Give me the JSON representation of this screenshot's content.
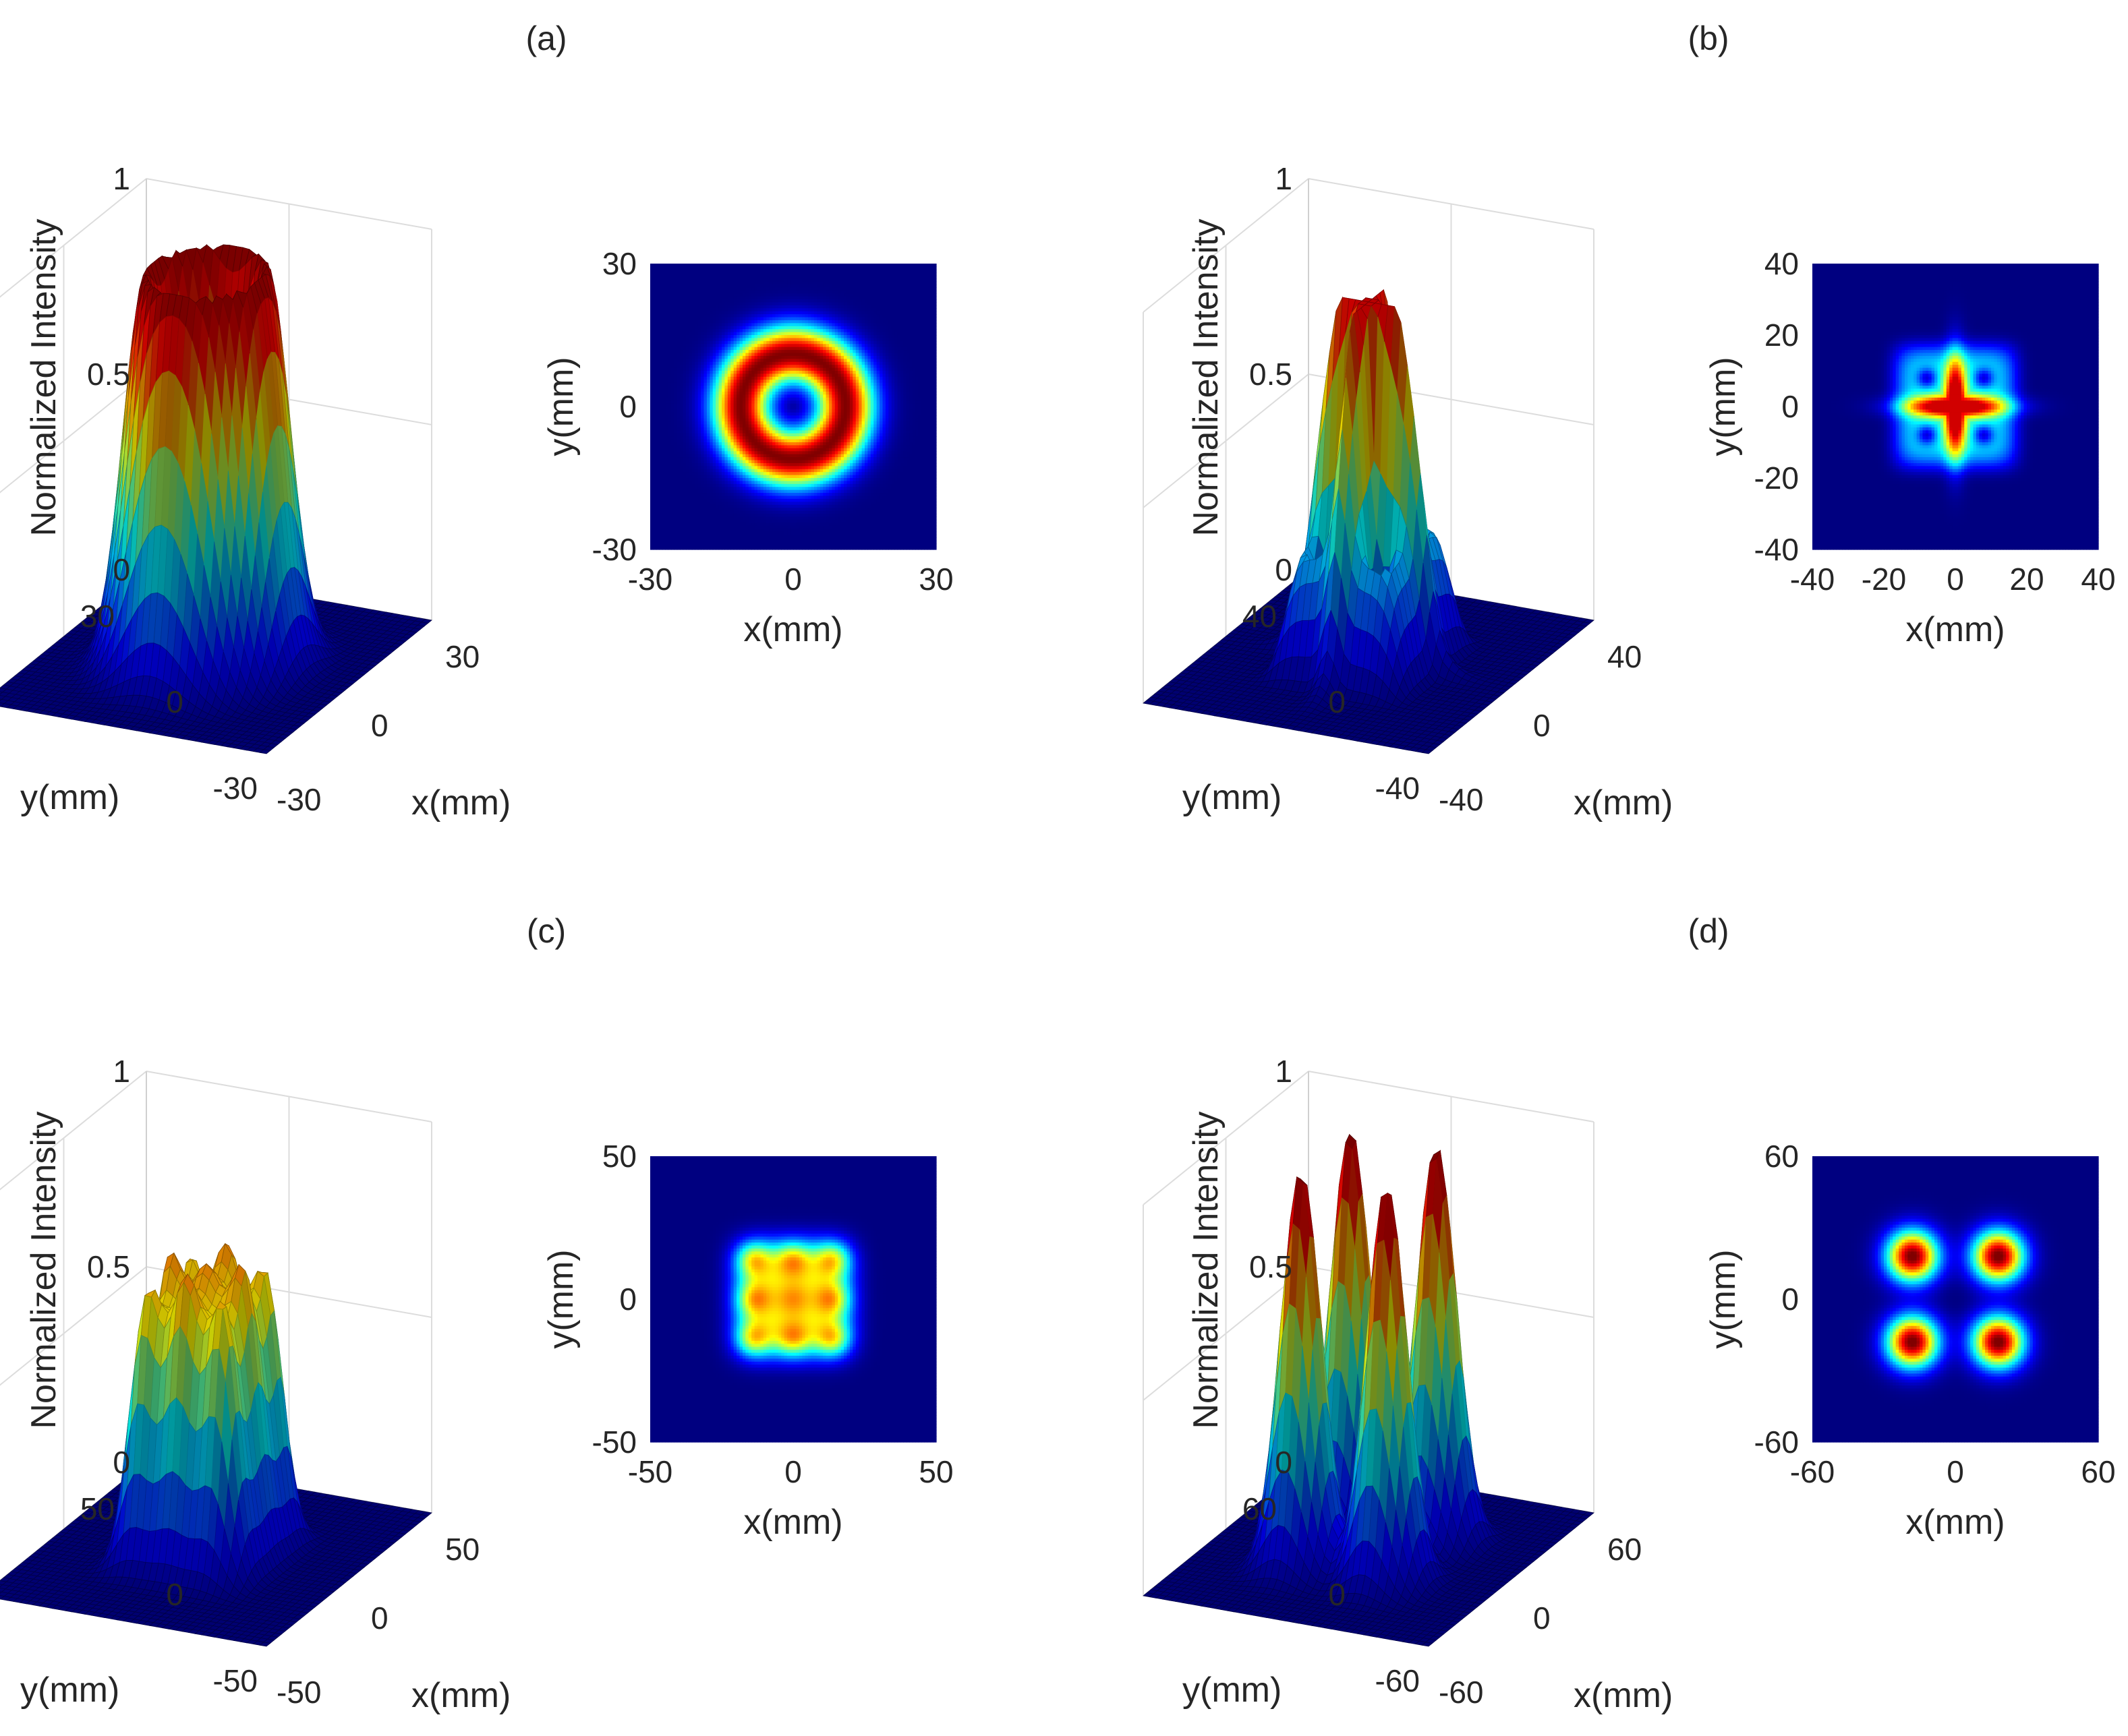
{
  "figure": {
    "colormap": "jet",
    "colormap_anchors": [
      "#00008f",
      "#0000ff",
      "#00ffff",
      "#ffff00",
      "#ff0000",
      "#800000"
    ]
  },
  "chart_data": [
    {
      "id": "a",
      "panel_label": "(a)",
      "type": "surface3d+heatmap",
      "description_pattern": "ring",
      "surface": {
        "xlabel": "x(mm)",
        "ylabel": "y(mm)",
        "zlabel": "Normalized Intensity",
        "xlim": [
          -30,
          30
        ],
        "ylim": [
          -30,
          30
        ],
        "zlim": [
          0,
          1
        ],
        "xticks": [
          "-30",
          "0",
          "30"
        ],
        "yticks": [
          "-30",
          "0",
          "30"
        ],
        "zticks": [
          "0",
          "0.5",
          "1"
        ]
      },
      "heatmap": {
        "xlabel": "x(mm)",
        "ylabel": "y(mm)",
        "xlim": [
          -30,
          30
        ],
        "ylim": [
          -30,
          30
        ],
        "xticks": [
          "-30",
          "0",
          "30"
        ],
        "yticks": [
          "30",
          "0",
          "-30"
        ]
      },
      "model": {
        "kind": "ring",
        "ring_radius_mm": 11,
        "ring_width_mm": 4.2,
        "peak": 1.0
      }
    },
    {
      "id": "b",
      "panel_label": "(b)",
      "type": "surface3d+heatmap",
      "description_pattern": "cross",
      "surface": {
        "xlabel": "x(mm)",
        "ylabel": "y(mm)",
        "zlabel": "Normalized Intensity",
        "xlim": [
          -40,
          40
        ],
        "ylim": [
          -40,
          40
        ],
        "zlim": [
          0,
          1
        ],
        "xticks": [
          "-40",
          "0",
          "40"
        ],
        "yticks": [
          "-40",
          "0",
          "40"
        ],
        "zticks": [
          "0",
          "0.5",
          "1"
        ]
      },
      "heatmap": {
        "xlabel": "x(mm)",
        "ylabel": "y(mm)",
        "xlim": [
          -40,
          40
        ],
        "ylim": [
          -40,
          40
        ],
        "xticks": [
          "-40",
          "-20",
          "0",
          "20",
          "40"
        ],
        "yticks": [
          "40",
          "20",
          "0",
          "-20",
          "-40"
        ]
      },
      "model": {
        "kind": "cross",
        "peak": 0.92
      }
    },
    {
      "id": "c",
      "panel_label": "(c)",
      "type": "surface3d+heatmap",
      "description_pattern": "3x3 lattice",
      "surface": {
        "xlabel": "x(mm)",
        "ylabel": "y(mm)",
        "zlabel": "Normalized Intensity",
        "xlim": [
          -50,
          50
        ],
        "ylim": [
          -50,
          50
        ],
        "zlim": [
          0,
          1
        ],
        "xticks": [
          "-50",
          "0",
          "50"
        ],
        "yticks": [
          "-50",
          "0",
          "50"
        ],
        "zticks": [
          "0",
          "0.5",
          "1"
        ]
      },
      "heatmap": {
        "xlabel": "x(mm)",
        "ylabel": "y(mm)",
        "xlim": [
          -50,
          50
        ],
        "ylim": [
          -50,
          50
        ],
        "xticks": [
          "-50",
          "0",
          "50"
        ],
        "yticks": [
          "50",
          "0",
          "-50"
        ]
      },
      "model": {
        "kind": "lattice",
        "peak": 0.95
      }
    },
    {
      "id": "d",
      "panel_label": "(d)",
      "type": "surface3d+heatmap",
      "description_pattern": "four lobes",
      "surface": {
        "xlabel": "x(mm)",
        "ylabel": "y(mm)",
        "zlabel": "Normalized Intensity",
        "xlim": [
          -60,
          60
        ],
        "ylim": [
          -60,
          60
        ],
        "zlim": [
          0,
          1
        ],
        "xticks": [
          "-60",
          "0",
          "60"
        ],
        "yticks": [
          "-60",
          "0",
          "60"
        ],
        "zticks": [
          "0",
          "0.5",
          "1"
        ]
      },
      "heatmap": {
        "xlabel": "x(mm)",
        "ylabel": "y(mm)",
        "xlim": [
          -60,
          60
        ],
        "ylim": [
          -60,
          60
        ],
        "xticks": [
          "-60",
          "0",
          "60"
        ],
        "yticks": [
          "60",
          "0",
          "-60"
        ]
      },
      "model": {
        "kind": "fourlobe",
        "lobe_offset_mm": 18,
        "peak": 1.0
      }
    }
  ]
}
